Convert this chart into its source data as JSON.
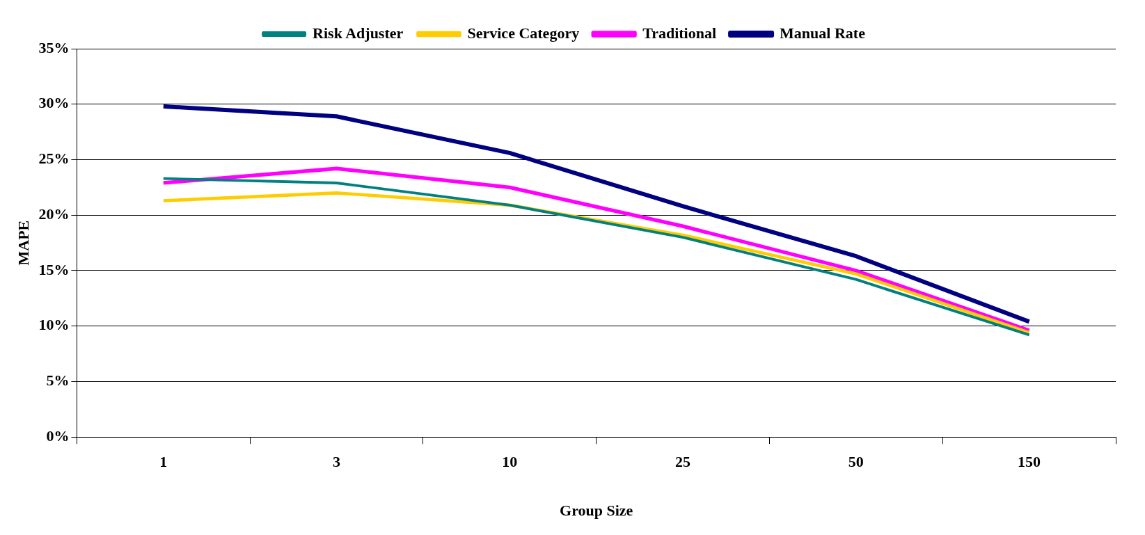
{
  "chart_data": {
    "type": "line",
    "xlabel": "Group Size",
    "ylabel": "MAPE",
    "categories": [
      "1",
      "3",
      "10",
      "25",
      "50",
      "150"
    ],
    "series": [
      {
        "name": "Manual Rate",
        "color": "#000080",
        "values": [
          29.8,
          28.9,
          25.6,
          20.8,
          16.3,
          10.4
        ]
      },
      {
        "name": "Traditional",
        "color": "#ff00ff",
        "values": [
          22.9,
          24.2,
          22.5,
          19.0,
          15.0,
          9.6
        ]
      },
      {
        "name": "Service Category",
        "color": "#ffcc00",
        "values": [
          21.3,
          22.0,
          20.9,
          18.2,
          14.7,
          9.4
        ]
      },
      {
        "name": "Risk Adjuster",
        "color": "#008080",
        "values": [
          23.3,
          22.9,
          20.9,
          18.0,
          14.2,
          9.2
        ]
      }
    ],
    "ylim": [
      0,
      35
    ],
    "yticks": [
      {
        "value": 0,
        "label": "0%"
      },
      {
        "value": 5,
        "label": "5%"
      },
      {
        "value": 10,
        "label": "10%"
      },
      {
        "value": 15,
        "label": "15%"
      },
      {
        "value": 20,
        "label": "20%"
      },
      {
        "value": 25,
        "label": "25%"
      },
      {
        "value": 30,
        "label": "30%"
      },
      {
        "value": 35,
        "label": "35%"
      }
    ],
    "grid": "y",
    "legend": "top",
    "marker": "none",
    "line_style": "solid"
  }
}
